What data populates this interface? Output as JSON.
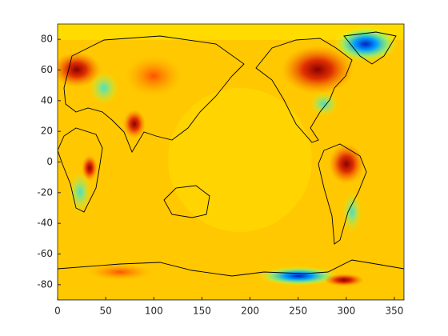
{
  "chart_data": {
    "type": "map",
    "xlim": [
      0,
      360
    ],
    "ylim": [
      -90,
      90
    ],
    "xticks": [
      0,
      50,
      100,
      150,
      200,
      250,
      300,
      350
    ],
    "yticks": [
      -80,
      -60,
      -40,
      -20,
      0,
      20,
      40,
      60,
      80
    ]
  }
}
